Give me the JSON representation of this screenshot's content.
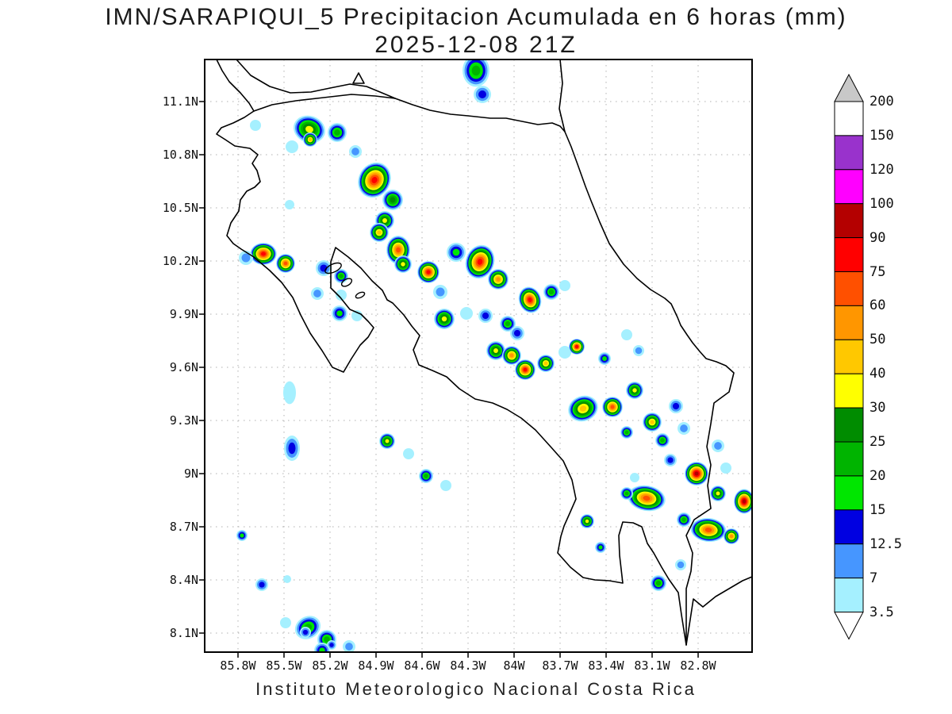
{
  "title": {
    "line1": "IMN/SARAPIQUI_5 Precipitacion Acumulada en 6 horas (mm)",
    "line2": "2025-12-08 21Z"
  },
  "footer": "Instituto Meteorologico Nacional Costa Rica",
  "axes": {
    "lat_ticks": [
      "11.1N",
      "10.8N",
      "10.5N",
      "10.2N",
      "9.9N",
      "9.6N",
      "9.3N",
      "9N",
      "8.7N",
      "8.4N",
      "8.1N"
    ],
    "lon_ticks": [
      "85.8W",
      "85.5W",
      "85.2W",
      "84.9W",
      "84.6W",
      "84.3W",
      "84W",
      "83.7W",
      "83.4W",
      "83.1W",
      "82.8W"
    ]
  },
  "colorbar": {
    "labels": [
      "200",
      "150",
      "120",
      "100",
      "90",
      "75",
      "60",
      "50",
      "40",
      "30",
      "25",
      "20",
      "15",
      "12.5",
      "7",
      "3.5"
    ],
    "arrow_top_color": "#c8c8c8",
    "arrow_bottom_color": "#ffffff",
    "outline_color": "#000000"
  },
  "chart_data": {
    "type": "heatmap",
    "title": "IMN/SARAPIQUI_5 Precipitacion Acumulada en 6 horas (mm)",
    "valid_time": "2025-12-08 21Z",
    "units": "mm",
    "region": "Costa Rica",
    "lat_range": [
      "8.1N",
      "11.1N"
    ],
    "lon_range": [
      "85.8W",
      "82.8W"
    ],
    "levels_mm": [
      3.5,
      7,
      12.5,
      15,
      20,
      25,
      30,
      40,
      50,
      60,
      75,
      90,
      100,
      120,
      150,
      200
    ],
    "palette": [
      "#a5f0ff",
      "#4696ff",
      "#0000e1",
      "#00e600",
      "#00b400",
      "#008c00",
      "#ffff00",
      "#ffc800",
      "#ff9600",
      "#ff5000",
      "#ff0000",
      "#b40000",
      "#ff00ff",
      "#9932cc",
      "#ffffff",
      "#c8c8c8"
    ],
    "grid_color": "#b0b0b0",
    "cell_format": "[x_px,y_px,radius_px,max_level_index,scale_x,scale_y,rotation_deg]",
    "cells": [
      [
        342,
        14,
        17,
        4,
        1,
        1.2,
        0
      ],
      [
        350,
        44,
        11,
        2
      ],
      [
        64,
        83,
        7,
        0
      ],
      [
        132,
        88,
        17,
        6,
        1.2,
        1,
        20
      ],
      [
        167,
        92,
        12,
        4
      ],
      [
        110,
        110,
        8,
        0
      ],
      [
        190,
        116,
        8,
        1
      ],
      [
        133,
        101,
        9,
        7
      ],
      [
        214,
        152,
        20,
        10,
        1,
        1.15,
        30
      ],
      [
        237,
        177,
        13,
        5
      ],
      [
        227,
        203,
        12,
        6
      ],
      [
        220,
        218,
        12,
        7
      ],
      [
        244,
        240,
        15,
        9,
        1,
        1.2,
        0
      ],
      [
        250,
        258,
        11,
        6
      ],
      [
        107,
        183,
        6,
        0
      ],
      [
        74,
        245,
        14,
        10,
        1.2,
        1,
        0
      ],
      [
        102,
        257,
        12,
        9
      ],
      [
        52,
        250,
        9,
        1
      ],
      [
        150,
        263,
        10,
        2
      ],
      [
        172,
        273,
        9,
        4
      ],
      [
        172,
        297,
        7,
        0
      ],
      [
        282,
        268,
        14,
        10
      ],
      [
        317,
        243,
        12,
        3
      ],
      [
        347,
        255,
        18,
        10,
        1,
        1.2,
        20
      ],
      [
        370,
        277,
        13,
        8
      ],
      [
        410,
        303,
        14,
        10,
        1,
        1.2,
        -20
      ],
      [
        437,
        293,
        10,
        4
      ],
      [
        454,
        285,
        7,
        0
      ],
      [
        170,
        320,
        10,
        3
      ],
      [
        192,
        323,
        7,
        0
      ],
      [
        142,
        295,
        8,
        1
      ],
      [
        297,
        293,
        9,
        1
      ],
      [
        302,
        327,
        13,
        6
      ],
      [
        330,
        320,
        8,
        0
      ],
      [
        354,
        323,
        9,
        2
      ],
      [
        382,
        333,
        10,
        4
      ],
      [
        394,
        345,
        9,
        2
      ],
      [
        367,
        367,
        12,
        6
      ],
      [
        387,
        373,
        12,
        8
      ],
      [
        404,
        391,
        13,
        10
      ],
      [
        430,
        383,
        11,
        7
      ],
      [
        454,
        369,
        8,
        0
      ],
      [
        469,
        362,
        10,
        10
      ],
      [
        504,
        377,
        8,
        3
      ],
      [
        532,
        347,
        7,
        0
      ],
      [
        547,
        367,
        7,
        1
      ],
      [
        477,
        440,
        16,
        7,
        1.2,
        1,
        -20
      ],
      [
        514,
        438,
        13,
        9
      ],
      [
        542,
        417,
        11,
        6
      ],
      [
        564,
        457,
        12,
        7
      ],
      [
        594,
        437,
        9,
        2
      ],
      [
        604,
        465,
        8,
        1
      ],
      [
        577,
        480,
        9,
        4
      ],
      [
        532,
        470,
        8,
        4
      ],
      [
        107,
        420,
        8,
        0,
        1,
        1.8,
        0
      ],
      [
        110,
        490,
        10,
        2,
        1,
        1.6,
        0
      ],
      [
        230,
        481,
        10,
        6
      ],
      [
        257,
        497,
        7,
        0
      ],
      [
        279,
        525,
        9,
        4
      ],
      [
        304,
        537,
        7,
        0
      ],
      [
        620,
        522,
        15,
        11
      ],
      [
        587,
        505,
        8,
        2
      ],
      [
        647,
        487,
        8,
        1
      ],
      [
        657,
        515,
        7,
        0
      ],
      [
        680,
        557,
        13,
        11,
        1,
        1.2,
        0
      ],
      [
        647,
        547,
        10,
        6
      ],
      [
        557,
        553,
        16,
        9,
        1.5,
        1,
        10
      ],
      [
        532,
        547,
        8,
        4
      ],
      [
        604,
        580,
        9,
        4
      ],
      [
        635,
        593,
        15,
        9,
        1.5,
        1,
        5
      ],
      [
        664,
        601,
        10,
        8
      ],
      [
        542,
        527,
        6,
        0
      ],
      [
        482,
        582,
        9,
        6
      ],
      [
        499,
        615,
        7,
        3
      ],
      [
        47,
        600,
        7,
        3
      ],
      [
        572,
        660,
        10,
        4
      ],
      [
        600,
        637,
        7,
        1
      ],
      [
        72,
        662,
        8,
        2
      ],
      [
        104,
        655,
        5,
        0
      ],
      [
        130,
        716,
        14,
        4,
        1.2,
        1,
        -30
      ],
      [
        127,
        722,
        7,
        2
      ],
      [
        154,
        731,
        12,
        4
      ],
      [
        160,
        738,
        6,
        2
      ],
      [
        182,
        740,
        8,
        1
      ],
      [
        102,
        710,
        7,
        0
      ],
      [
        148,
        745,
        10,
        3
      ]
    ]
  }
}
